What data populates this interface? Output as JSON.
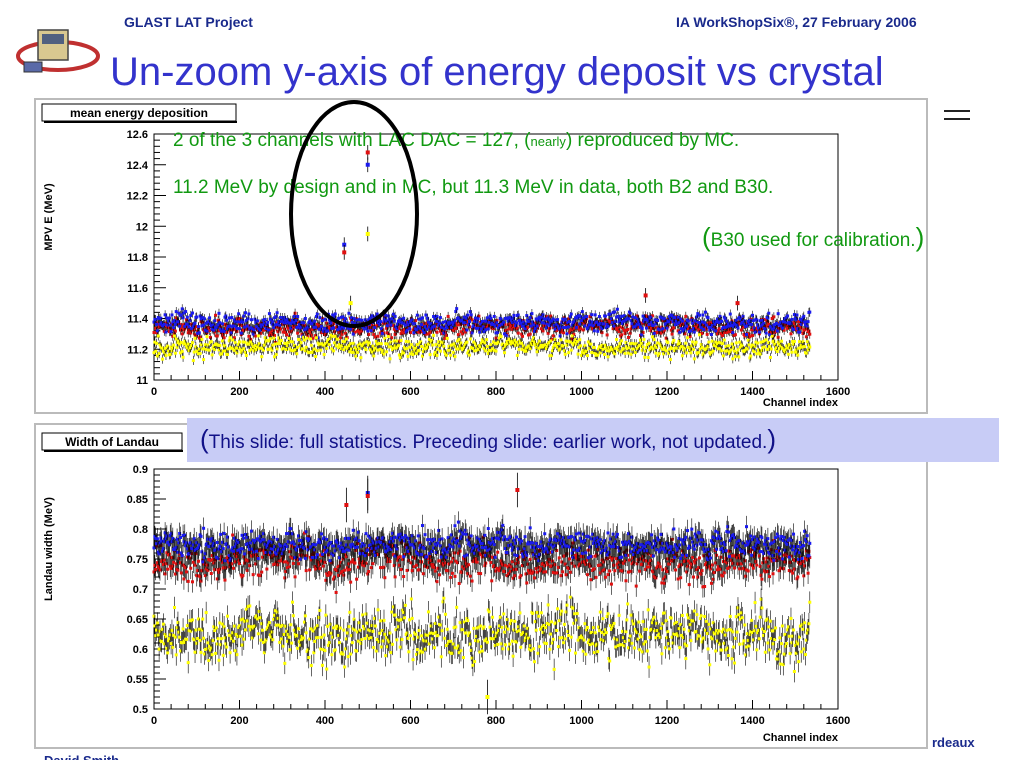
{
  "header": {
    "left": "GLAST LAT Project",
    "right": "IA WorkShopSix®, 27 February 2006"
  },
  "slide_title": "Un-zoom y-axis of energy deposit vs crystal",
  "annotations": {
    "line1_a": "2 of the 3 channels with LAC DAC = 127, (",
    "line1_small": "nearly",
    "line1_b": ") reproduced by MC.",
    "line2": "11.2 MeV by design and in MC, but 11.3 MeV in data, both B2 and B30.",
    "line3_open": "(",
    "line3_text": "B30 used for calibration.",
    "line3_close": ")"
  },
  "note": {
    "open": "(",
    "text": "This slide: full statistics.  Preceding slide: earlier work, not updated.",
    "close": ")"
  },
  "footer": {
    "left": "David Smith",
    "right": "rdeaux"
  },
  "colors": {
    "series_red": "#e01010",
    "series_blue": "#1a1aee",
    "series_yellow": "#ffff00",
    "annotation_green": "#119911",
    "circle": "#000000",
    "note_box": "#c8ccf6",
    "title": "#3333cc"
  },
  "icons": {
    "logo": "glast-satellite-logo"
  },
  "chart_data": [
    {
      "type": "scatter",
      "title": "mean energy deposition",
      "xlabel": "Channel index",
      "ylabel": "MPV E (MeV)",
      "xlim": [
        0,
        1600
      ],
      "ylim": [
        11,
        12.6
      ],
      "x_ticks": [
        "0",
        "200",
        "400",
        "600",
        "800",
        "1000",
        "1200",
        "1400",
        "1600"
      ],
      "y_ticks": [
        "11",
        "11.2",
        "11.4",
        "11.6",
        "11.8",
        "12",
        "12.2",
        "12.4",
        "12.6"
      ],
      "n_channels": 1536,
      "series": [
        {
          "color": "blue",
          "mean": 11.37,
          "spread": 0.045
        },
        {
          "color": "red",
          "mean": 11.34,
          "spread": 0.045
        },
        {
          "color": "yellow",
          "mean": 11.21,
          "spread": 0.045
        }
      ],
      "outliers": [
        {
          "series": "red",
          "x": 500,
          "y": 12.48
        },
        {
          "series": "blue",
          "x": 500,
          "y": 12.4
        },
        {
          "series": "yellow",
          "x": 500,
          "y": 11.95
        },
        {
          "series": "blue",
          "x": 445,
          "y": 11.88
        },
        {
          "series": "red",
          "x": 445,
          "y": 11.83
        },
        {
          "series": "red",
          "x": 1150,
          "y": 11.55
        },
        {
          "series": "yellow",
          "x": 460,
          "y": 11.5
        },
        {
          "series": "red",
          "x": 1365,
          "y": 11.5
        }
      ],
      "grid": false,
      "legend": "none"
    },
    {
      "type": "scatter",
      "title": "Width of Landau",
      "xlabel": "Channel index",
      "ylabel": "Landau width (MeV)",
      "xlim": [
        0,
        1600
      ],
      "ylim": [
        0.5,
        0.9
      ],
      "x_ticks": [
        "0",
        "200",
        "400",
        "600",
        "800",
        "1000",
        "1200",
        "1400",
        "1600"
      ],
      "y_ticks": [
        "0.5",
        "0.55",
        "0.6",
        "0.65",
        "0.7",
        "0.75",
        "0.8",
        "0.85",
        "0.9"
      ],
      "n_channels": 1536,
      "series": [
        {
          "color": "blue",
          "mean": 0.775,
          "spread": 0.016
        },
        {
          "color": "red",
          "mean": 0.745,
          "spread": 0.022
        },
        {
          "color": "yellow",
          "mean": 0.625,
          "spread": 0.03
        }
      ],
      "outliers": [
        {
          "series": "red",
          "x": 850,
          "y": 0.865
        },
        {
          "series": "blue",
          "x": 500,
          "y": 0.86
        },
        {
          "series": "red",
          "x": 500,
          "y": 0.855
        },
        {
          "series": "red",
          "x": 450,
          "y": 0.84
        },
        {
          "series": "yellow",
          "x": 780,
          "y": 0.52
        }
      ],
      "grid": false,
      "legend": "none"
    }
  ]
}
